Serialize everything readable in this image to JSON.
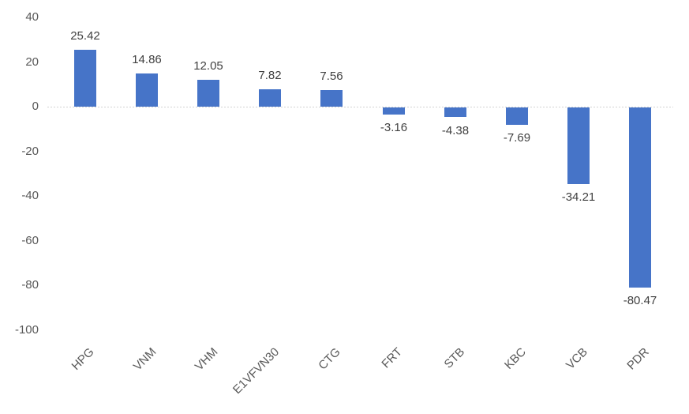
{
  "chart_data": {
    "type": "bar",
    "title": "",
    "xlabel": "",
    "ylabel": "",
    "categories": [
      "HPG",
      "VNM",
      "VHM",
      "E1VFVN30",
      "CTG",
      "FRT",
      "STB",
      "KBC",
      "VCB",
      "PDR"
    ],
    "values": [
      25.42,
      14.86,
      12.05,
      7.82,
      7.56,
      -3.16,
      -4.38,
      -7.69,
      -34.21,
      -80.47
    ],
    "labels": [
      "25.42",
      "14.86",
      "12.05",
      "7.82",
      "7.56",
      "-3.16",
      "-4.38",
      "-7.69",
      "-34.21",
      "-80.47"
    ],
    "ylim": [
      -100,
      40
    ],
    "ytick_step": 20,
    "yticks": [
      40,
      20,
      0,
      -20,
      -40,
      -60,
      -80,
      -100
    ],
    "grid": "zero-line-only",
    "legend": "none",
    "colors": {
      "bar": "#4674C8",
      "value_label": "#404040",
      "axis_text": "#595959",
      "zero_line": "#D2D2D2",
      "background": "#FFFFFF"
    }
  }
}
